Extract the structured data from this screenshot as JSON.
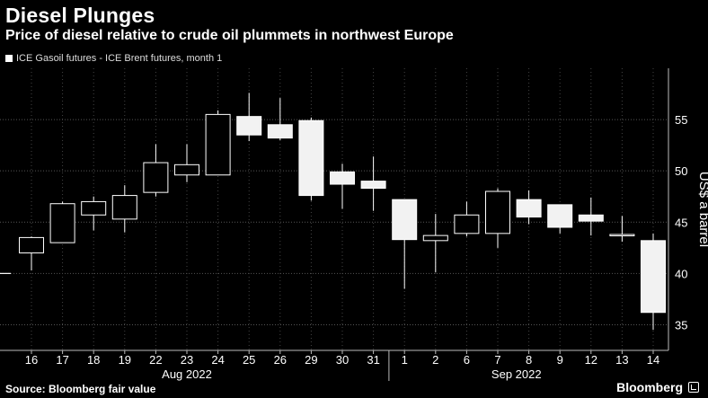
{
  "header": {
    "title": "Diesel Plunges",
    "subtitle": "Price of diesel relative to crude oil plummets in northwest Europe"
  },
  "footer": {
    "source": "Source: Bloomberg fair value",
    "brand": "Bloomberg"
  },
  "chart_data": {
    "type": "candlestick",
    "legend": [
      "ICE Gasoil futures - ICE Brent futures, month 1"
    ],
    "ylabel": "US$ a barrel",
    "ylim": [
      32.5,
      60
    ],
    "yticks": [
      35,
      40,
      45,
      50,
      55
    ],
    "categories": [
      "16",
      "17",
      "18",
      "19",
      "22",
      "23",
      "24",
      "25",
      "26",
      "29",
      "30",
      "31",
      "1",
      "2",
      "6",
      "7",
      "8",
      "9",
      "12",
      "13",
      "14"
    ],
    "month_labels": [
      {
        "label": "Aug 2022",
        "at_index": 5
      },
      {
        "label": "Sep 2022",
        "at_index": 15.6
      }
    ],
    "month_separator_after_index": 11,
    "prior_close": 40,
    "candles": [
      {
        "date": "16",
        "open": 42.0,
        "close": 43.5,
        "high": 43.6,
        "low": 40.3
      },
      {
        "date": "17",
        "open": 43.0,
        "close": 46.8,
        "high": 47.0,
        "low": 43.0
      },
      {
        "date": "18",
        "open": 45.7,
        "close": 47.0,
        "high": 47.5,
        "low": 44.2
      },
      {
        "date": "19",
        "open": 45.3,
        "close": 47.6,
        "high": 48.6,
        "low": 44.0
      },
      {
        "date": "22",
        "open": 47.9,
        "close": 50.8,
        "high": 52.6,
        "low": 47.5
      },
      {
        "date": "23",
        "open": 49.6,
        "close": 50.6,
        "high": 52.6,
        "low": 48.9
      },
      {
        "date": "24",
        "open": 49.6,
        "close": 55.5,
        "high": 55.9,
        "low": 49.6
      },
      {
        "date": "25",
        "open": 55.3,
        "close": 53.5,
        "high": 57.6,
        "low": 52.9
      },
      {
        "date": "26",
        "open": 54.5,
        "close": 53.2,
        "high": 57.1,
        "low": 53.0
      },
      {
        "date": "29",
        "open": 54.9,
        "close": 47.6,
        "high": 55.2,
        "low": 47.1
      },
      {
        "date": "30",
        "open": 49.9,
        "close": 48.7,
        "high": 50.7,
        "low": 46.3
      },
      {
        "date": "31",
        "open": 49.0,
        "close": 48.3,
        "high": 51.4,
        "low": 46.1
      },
      {
        "date": "1",
        "open": 47.2,
        "close": 43.3,
        "high": 47.2,
        "low": 38.5
      },
      {
        "date": "2",
        "open": 43.2,
        "close": 43.7,
        "high": 45.8,
        "low": 40.1
      },
      {
        "date": "6",
        "open": 43.9,
        "close": 45.7,
        "high": 47.0,
        "low": 43.6
      },
      {
        "date": "7",
        "open": 43.9,
        "close": 48.0,
        "high": 48.3,
        "low": 42.5
      },
      {
        "date": "8",
        "open": 47.2,
        "close": 45.5,
        "high": 48.1,
        "low": 44.8
      },
      {
        "date": "9",
        "open": 46.7,
        "close": 44.5,
        "high": 46.7,
        "low": 43.9
      },
      {
        "date": "12",
        "open": 45.7,
        "close": 45.1,
        "high": 47.4,
        "low": 43.7
      },
      {
        "date": "13",
        "open": 43.8,
        "close": 43.8,
        "high": 45.6,
        "low": 43.1
      },
      {
        "date": "14",
        "open": 43.2,
        "close": 36.2,
        "high": 43.9,
        "low": 34.5
      }
    ]
  }
}
